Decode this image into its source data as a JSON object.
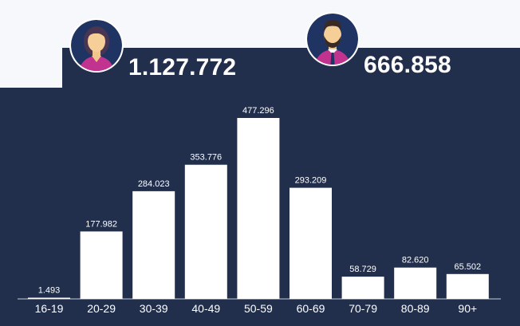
{
  "header": {
    "female": {
      "icon": "woman-avatar-icon",
      "total": "1.127.772"
    },
    "male": {
      "icon": "man-avatar-icon",
      "total": "666.858"
    }
  },
  "colors": {
    "background": "#212f4d",
    "page": "#f7f8fc",
    "bar": "#ffffff",
    "text": "#ffffff",
    "female_shirt": "#c2338f",
    "male_shirt": "#c2338f",
    "avatar_ring": "#ffffff"
  },
  "chart_data": {
    "type": "bar",
    "categories": [
      "16-19",
      "20-29",
      "30-39",
      "40-49",
      "50-59",
      "60-69",
      "70-79",
      "80-89",
      "90+"
    ],
    "values": [
      1493,
      177982,
      284023,
      353776,
      477296,
      293209,
      58729,
      82620,
      65502
    ],
    "value_labels": [
      "1.493",
      "177.982",
      "284.023",
      "353.776",
      "477.296",
      "293.209",
      "58.729",
      "82.620",
      "65.502"
    ],
    "title": "",
    "xlabel": "",
    "ylabel": "",
    "ylim": [
      0,
      477296
    ],
    "grid": false,
    "legend": "none"
  }
}
